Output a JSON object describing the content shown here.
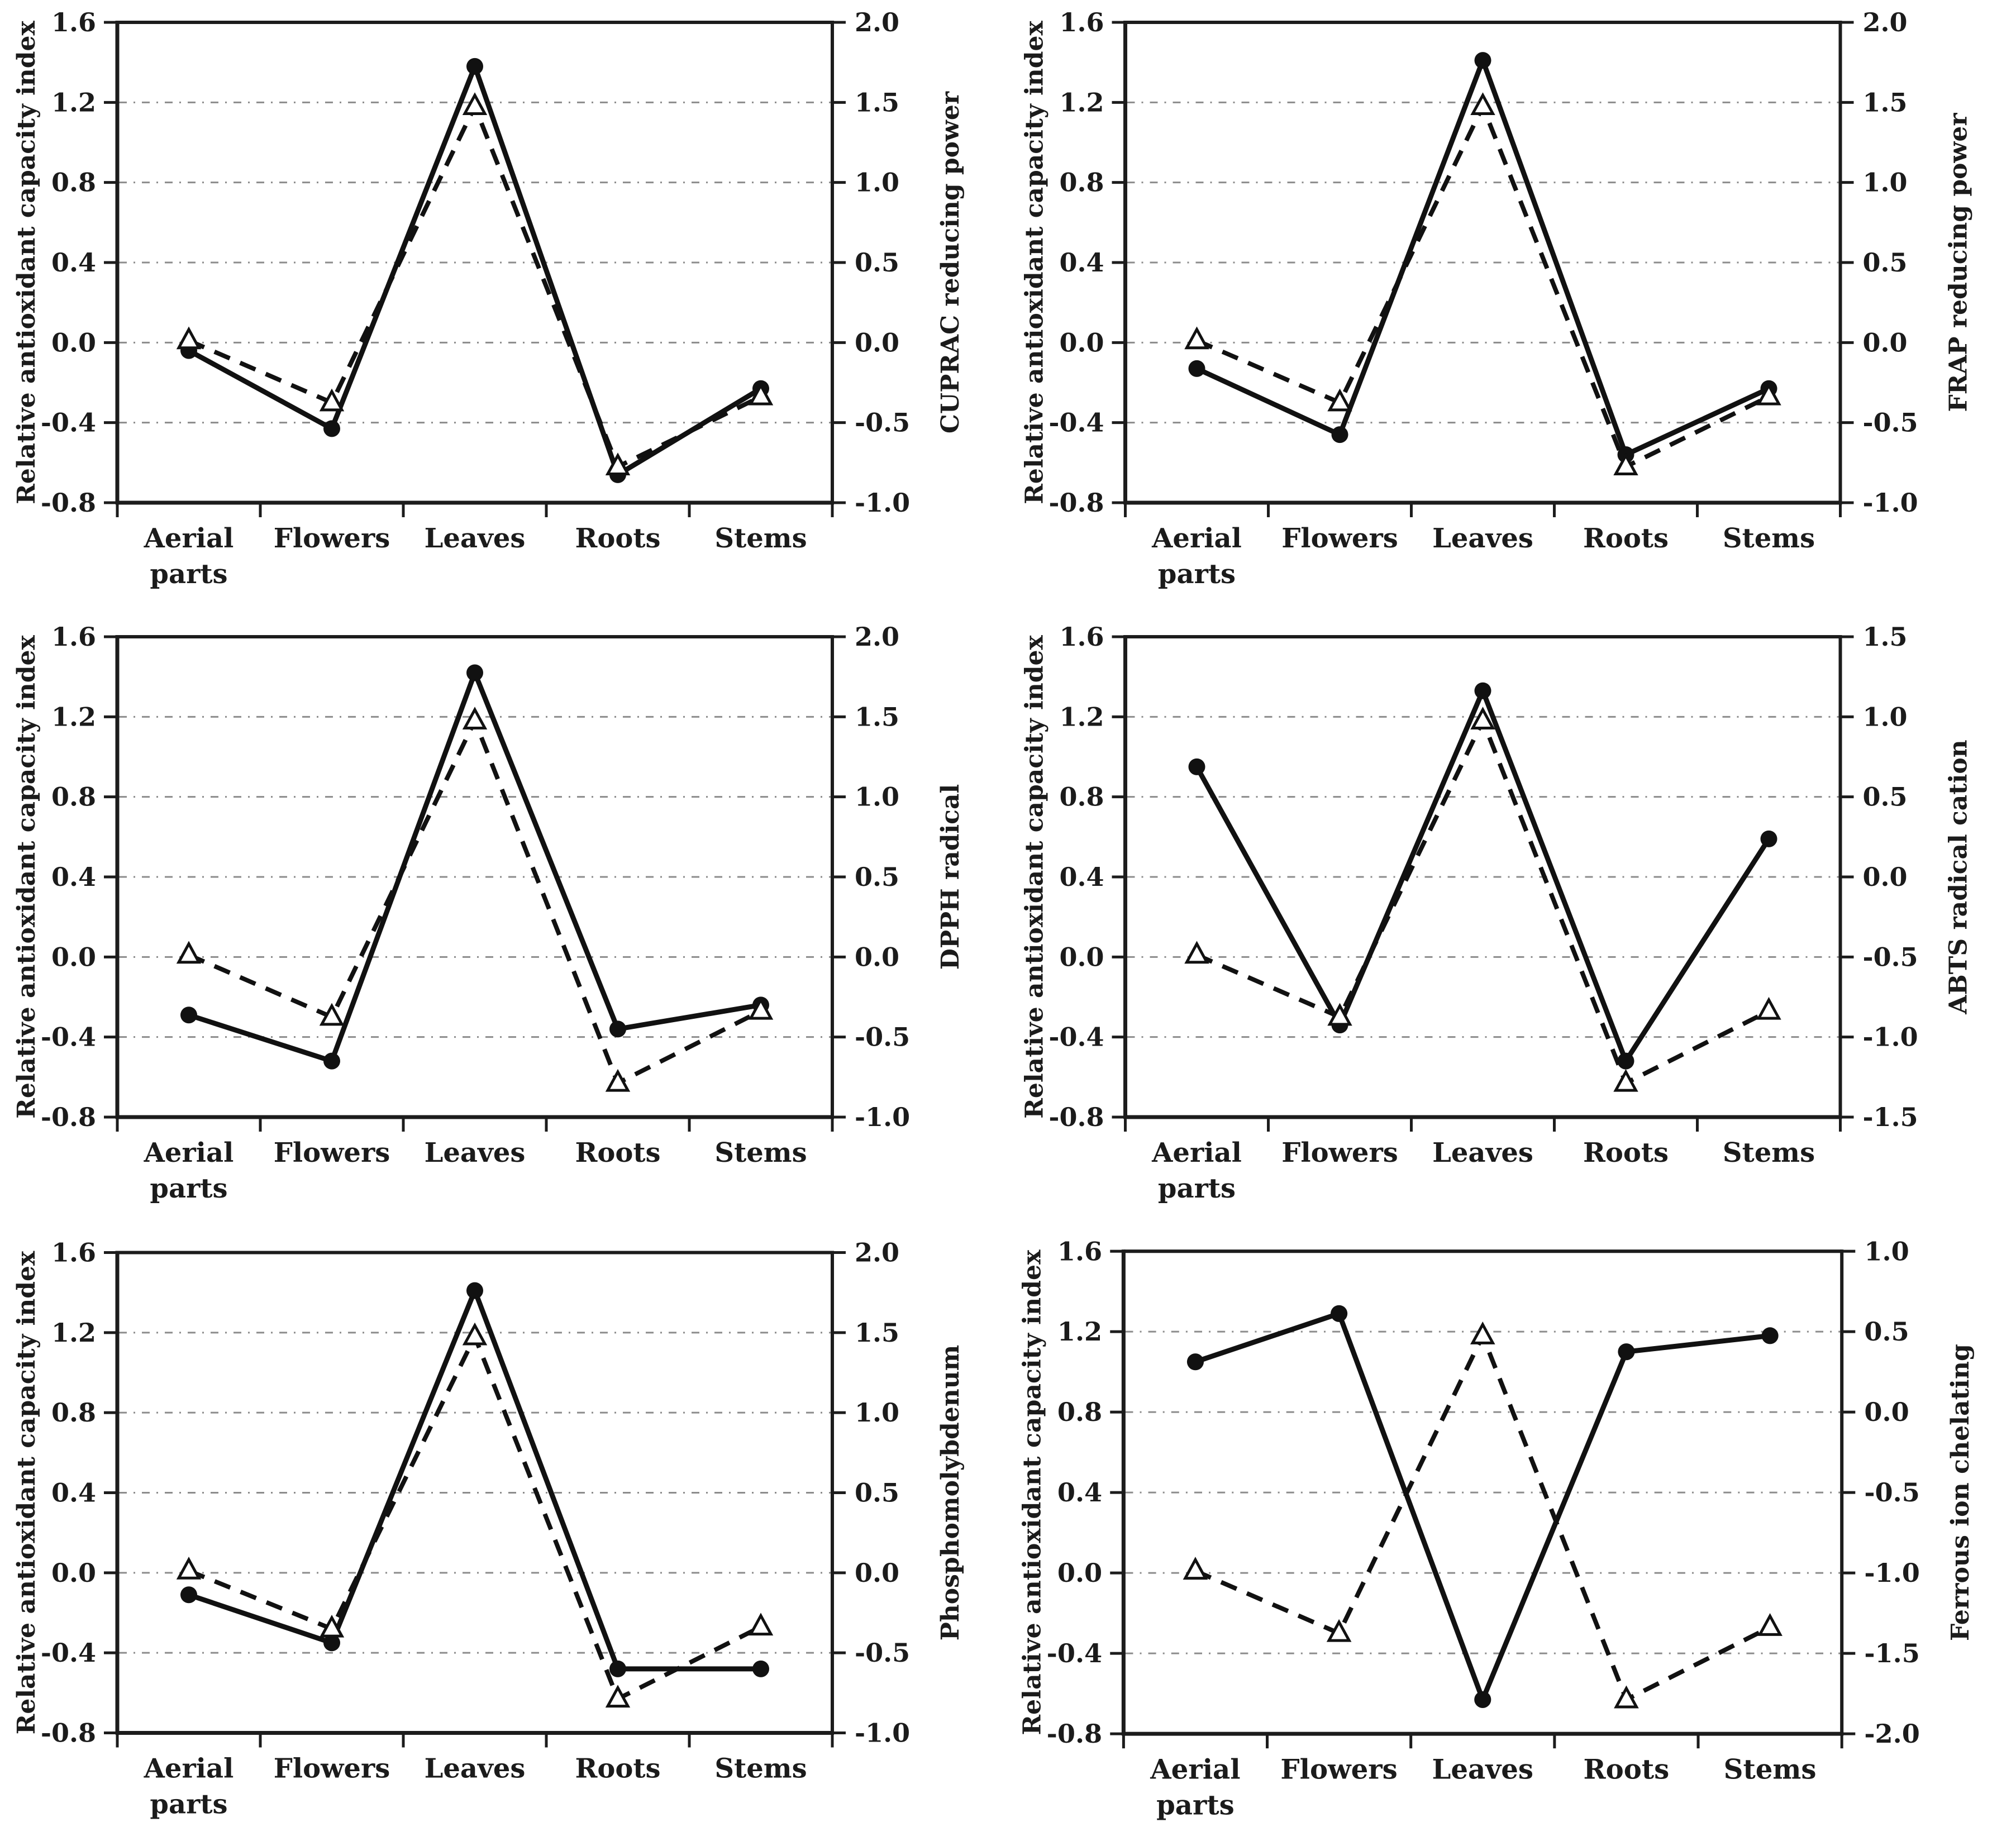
{
  "shared": {
    "categories": [
      "Aerial parts",
      "Flowers",
      "Leaves",
      "Roots",
      "Stems"
    ],
    "category_label_lines": [
      [
        "Aerial",
        "parts"
      ],
      [
        "Flowers"
      ],
      [
        "Leaves"
      ],
      [
        "Roots"
      ],
      [
        "Stems"
      ]
    ],
    "left_axis": {
      "label": "Relative antioxidant capacity index",
      "min": -0.8,
      "max": 1.6,
      "tick_labels": [
        "1.6",
        "1.2",
        "0.8",
        "0.4",
        "0.0",
        "-0.4",
        "-0.8"
      ],
      "tick_values": [
        1.6,
        1.2,
        0.8,
        0.4,
        0.0,
        -0.4,
        -0.8
      ],
      "gridline_values": [
        1.2,
        0.8,
        0.4,
        0.0,
        -0.4
      ]
    },
    "colors": {
      "line": "#111111",
      "text": "#1b1b1b",
      "axis": "#1c1c1c",
      "gridline": "#8c8c8c",
      "background": "#ffffff",
      "triangle_fill": "#ffffff"
    },
    "raci_series_name": "Relative antioxidant capacity index (dashed line, open triangles, left axis)"
  },
  "chart_data": [
    {
      "id": "cuprac",
      "type": "line",
      "categories": [
        "Aerial parts",
        "Flowers",
        "Leaves",
        "Roots",
        "Stems"
      ],
      "left_axis_label": "Relative antioxidant capacity index",
      "right_axis": {
        "label": "CUPRAC reducing power",
        "min": -1.0,
        "max": 2.0,
        "tick_labels": [
          "2.0",
          "1.5",
          "1.0",
          "0.5",
          "0.0",
          "-0.5",
          "-1.0"
        ]
      },
      "series": [
        {
          "name": "CUPRAC reducing power (solid line, filled circles, right axis)",
          "marker": "filled-circle",
          "line_style": "solid",
          "values_right_scale": [
            -0.05,
            -0.54,
            1.73,
            -0.83,
            -0.29
          ],
          "values_left_scale": [
            -0.04,
            -0.43,
            1.38,
            -0.66,
            -0.23
          ]
        },
        {
          "name": "Relative antioxidant capacity index (dashed line, open triangles, left axis)",
          "marker": "open-triangle",
          "line_style": "dashed",
          "values_left_scale": [
            0.01,
            -0.3,
            1.18,
            -0.62,
            -0.27
          ]
        }
      ]
    },
    {
      "id": "frap",
      "type": "line",
      "categories": [
        "Aerial parts",
        "Flowers",
        "Leaves",
        "Roots",
        "Stems"
      ],
      "left_axis_label": "Relative antioxidant capacity index",
      "right_axis": {
        "label": "FRAP reducing power",
        "min": -1.0,
        "max": 2.0,
        "tick_labels": [
          "2.0",
          "1.5",
          "1.0",
          "0.5",
          "0.0",
          "-0.5",
          "-1.0"
        ]
      },
      "series": [
        {
          "name": "FRAP reducing power (solid line, filled circles, right axis)",
          "marker": "filled-circle",
          "line_style": "solid",
          "values_right_scale": [
            -0.16,
            -0.58,
            1.76,
            -0.7,
            -0.29
          ],
          "values_left_scale": [
            -0.13,
            -0.46,
            1.41,
            -0.56,
            -0.23
          ]
        },
        {
          "name": "Relative antioxidant capacity index (dashed line, open triangles, left axis)",
          "marker": "open-triangle",
          "line_style": "dashed",
          "values_left_scale": [
            0.01,
            -0.3,
            1.18,
            -0.62,
            -0.27
          ]
        }
      ]
    },
    {
      "id": "dpph",
      "type": "line",
      "categories": [
        "Aerial parts",
        "Flowers",
        "Leaves",
        "Roots",
        "Stems"
      ],
      "left_axis_label": "Relative antioxidant capacity index",
      "right_axis": {
        "label": "DPPH radical",
        "min": -1.0,
        "max": 2.0,
        "tick_labels": [
          "2.0",
          "1.5",
          "1.0",
          "0.5",
          "0.0",
          "-0.5",
          "-1.0"
        ]
      },
      "series": [
        {
          "name": "DPPH radical (solid line, filled circles, right axis)",
          "marker": "filled-circle",
          "line_style": "solid",
          "values_right_scale": [
            -0.36,
            -0.65,
            1.78,
            -0.45,
            -0.3
          ],
          "values_left_scale": [
            -0.29,
            -0.52,
            1.42,
            -0.36,
            -0.24
          ]
        },
        {
          "name": "Relative antioxidant capacity index (dashed line, open triangles, left axis)",
          "marker": "open-triangle",
          "line_style": "dashed",
          "values_left_scale": [
            0.01,
            -0.3,
            1.18,
            -0.63,
            -0.27
          ]
        }
      ]
    },
    {
      "id": "abts",
      "type": "line",
      "categories": [
        "Aerial parts",
        "Flowers",
        "Leaves",
        "Roots",
        "Stems"
      ],
      "left_axis_label": "Relative antioxidant capacity index",
      "right_axis": {
        "label": "ABTS radical cation",
        "min": -1.5,
        "max": 1.5,
        "tick_labels": [
          "1.5",
          "1.0",
          "0.5",
          "0.0",
          "-0.5",
          "-1.0",
          "-1.5"
        ]
      },
      "series": [
        {
          "name": "ABTS radical cation (solid line, filled circles, right axis)",
          "marker": "filled-circle",
          "line_style": "solid",
          "values_right_scale": [
            0.69,
            -0.93,
            1.16,
            -1.15,
            0.24
          ],
          "values_left_scale": [
            0.95,
            -0.34,
            1.33,
            -0.52,
            0.59
          ]
        },
        {
          "name": "Relative antioxidant capacity index (dashed line, open triangles, left axis)",
          "marker": "open-triangle",
          "line_style": "dashed",
          "values_left_scale": [
            0.01,
            -0.3,
            1.18,
            -0.63,
            -0.27
          ]
        }
      ]
    },
    {
      "id": "phosphomolybdenum",
      "type": "line",
      "categories": [
        "Aerial parts",
        "Flowers",
        "Leaves",
        "Roots",
        "Stems"
      ],
      "left_axis_label": "Relative antioxidant capacity index",
      "right_axis": {
        "label": "Phosphomolybdenum",
        "min": -1.0,
        "max": 2.0,
        "tick_labels": [
          "2.0",
          "1.5",
          "1.0",
          "0.5",
          "0.0",
          "-0.5",
          "-1.0"
        ]
      },
      "series": [
        {
          "name": "Phosphomolybdenum (solid line, filled circles, right axis)",
          "marker": "filled-circle",
          "line_style": "solid",
          "values_right_scale": [
            -0.14,
            -0.44,
            1.76,
            -0.6,
            -0.6
          ],
          "values_left_scale": [
            -0.11,
            -0.35,
            1.41,
            -0.48,
            -0.48
          ]
        },
        {
          "name": "Relative antioxidant capacity index (dashed line, open triangles, left axis)",
          "marker": "open-triangle",
          "line_style": "dashed",
          "values_left_scale": [
            0.01,
            -0.28,
            1.18,
            -0.63,
            -0.27
          ]
        }
      ]
    },
    {
      "id": "ferrous-ion-chelating",
      "type": "line",
      "categories": [
        "Aerial parts",
        "Flowers",
        "Leaves",
        "Roots",
        "Stems"
      ],
      "left_axis_label": "Relative antioxidant capacity index",
      "right_axis": {
        "label": "Ferrous ion chelating",
        "min": -2.0,
        "max": 1.0,
        "tick_labels": [
          "1.0",
          "0.5",
          "0.0",
          "-0.5",
          "-1.0",
          "-1.5",
          "-2.0"
        ]
      },
      "series": [
        {
          "name": "Ferrous ion chelating (solid line, filled circles, right axis)",
          "marker": "filled-circle",
          "line_style": "solid",
          "values_right_scale": [
            0.31,
            0.61,
            -1.79,
            0.38,
            0.48
          ],
          "values_left_scale": [
            1.05,
            1.29,
            -0.63,
            1.1,
            1.18
          ]
        },
        {
          "name": "Relative antioxidant capacity index (dashed line, open triangles, left axis)",
          "marker": "open-triangle",
          "line_style": "dashed",
          "values_left_scale": [
            0.01,
            -0.3,
            1.18,
            -0.63,
            -0.27
          ]
        }
      ]
    }
  ]
}
